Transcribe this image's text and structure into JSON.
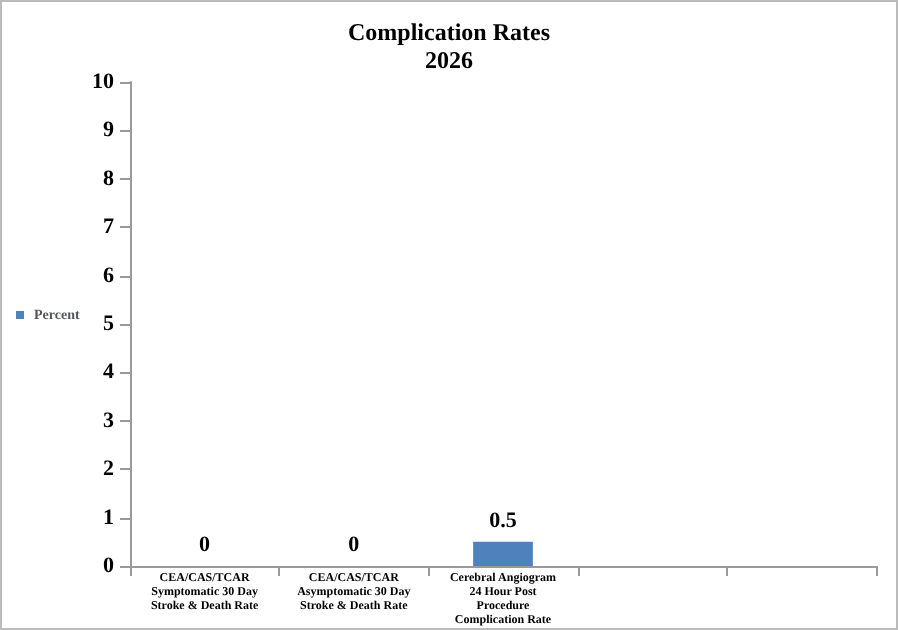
{
  "chart_data": {
    "type": "bar",
    "title": "Complication Rates",
    "subtitle": "2026",
    "categories": [
      "CEA/CAS/TCAR\nSymptomatic 30 Day\nStroke & Death Rate",
      "CEA/CAS/TCAR\nAsymptomatic 30 Day\nStroke & Death Rate",
      "Cerebral Angiogram\n24 Hour Post\nProcedure\nComplication Rate",
      null,
      null
    ],
    "series": [
      {
        "name": "Percent",
        "color": "#4f81bd",
        "values": [
          0,
          0,
          0.5,
          null,
          null
        ]
      }
    ],
    "ylim": [
      0,
      10
    ],
    "yticks": [
      0,
      1,
      2,
      3,
      4,
      5,
      6,
      7,
      8,
      9,
      10
    ],
    "grid": false,
    "legend": "left",
    "data_labels": true
  }
}
